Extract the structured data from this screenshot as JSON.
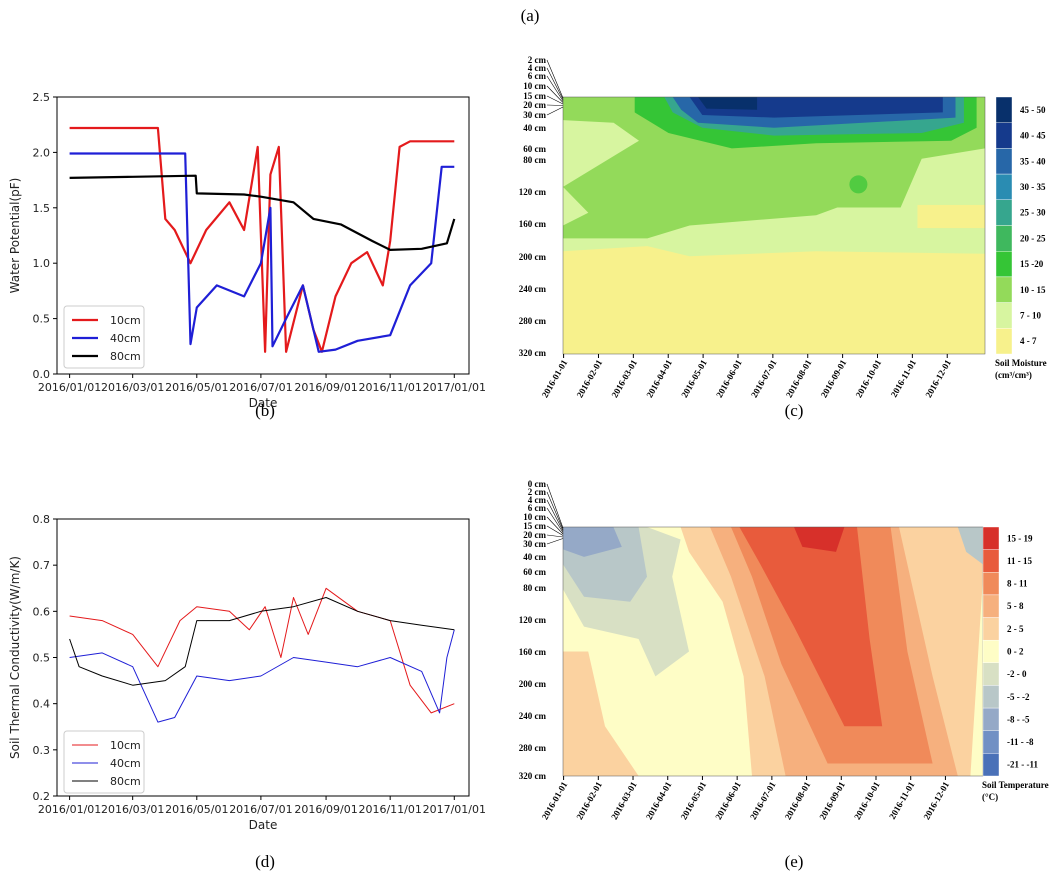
{
  "captions": {
    "a": "(a)",
    "b": "(b)",
    "c": "(c)",
    "d": "(d)",
    "e": "(e)"
  },
  "chart_data": [
    {
      "id": "b",
      "type": "line",
      "xlabel": "Date",
      "ylabel": "Water Potential(pF)",
      "ylim": [
        0.0,
        2.5
      ],
      "yticks": [
        "0.0",
        "0.5",
        "1.0",
        "1.5",
        "2.0",
        "2.5"
      ],
      "xticks": [
        "2016/01/01",
        "2016/03/01",
        "2016/05/01",
        "2016/07/01",
        "2016/09/01",
        "2016/11/01",
        "2017/01/01"
      ],
      "legend": "lower-left",
      "series": [
        {
          "name": "10cm",
          "color": "#e41a1c",
          "x": [
            "2016/01/01",
            "2016/03/25",
            "2016/04/01",
            "2016/04/10",
            "2016/04/25",
            "2016/05/10",
            "2016/06/01",
            "2016/06/15",
            "2016/06/28",
            "2016/07/05",
            "2016/07/10",
            "2016/07/18",
            "2016/07/25",
            "2016/08/10",
            "2016/08/20",
            "2016/08/28",
            "2016/09/10",
            "2016/09/25",
            "2016/10/10",
            "2016/10/25",
            "2016/11/01",
            "2016/11/10",
            "2016/11/20",
            "2017/01/01"
          ],
          "values": [
            2.22,
            2.22,
            1.4,
            1.3,
            1.0,
            1.3,
            1.55,
            1.3,
            2.05,
            0.2,
            1.8,
            2.05,
            0.2,
            0.8,
            0.4,
            0.2,
            0.7,
            1.0,
            1.1,
            0.8,
            1.2,
            2.05,
            2.1,
            2.1
          ]
        },
        {
          "name": "40cm",
          "color": "#1f1fd6",
          "x": [
            "2016/01/01",
            "2016/04/20",
            "2016/04/25",
            "2016/05/01",
            "2016/05/20",
            "2016/06/15",
            "2016/07/01",
            "2016/07/10",
            "2016/07/12",
            "2016/07/25",
            "2016/08/10",
            "2016/08/25",
            "2016/09/10",
            "2016/10/01",
            "2016/11/01",
            "2016/11/20",
            "2016/12/10",
            "2016/12/20",
            "2017/01/01"
          ],
          "values": [
            1.99,
            1.99,
            0.27,
            0.6,
            0.8,
            0.7,
            1.0,
            1.5,
            0.25,
            0.5,
            0.8,
            0.2,
            0.22,
            0.3,
            0.35,
            0.8,
            1.0,
            1.87,
            1.87
          ]
        },
        {
          "name": "80cm",
          "color": "#000000",
          "x": [
            "2016/01/01",
            "2016/03/01",
            "2016/04/30",
            "2016/05/01",
            "2016/06/15",
            "2016/07/01",
            "2016/08/01",
            "2016/08/20",
            "2016/09/15",
            "2016/10/15",
            "2016/11/01",
            "2016/12/01",
            "2016/12/25",
            "2017/01/01"
          ],
          "values": [
            1.77,
            1.78,
            1.79,
            1.63,
            1.62,
            1.6,
            1.55,
            1.4,
            1.35,
            1.2,
            1.12,
            1.13,
            1.18,
            1.4
          ]
        }
      ]
    },
    {
      "id": "d",
      "type": "line",
      "xlabel": "Date",
      "ylabel": "Soil Thermal Conductivity(W/m/K)",
      "ylim": [
        0.2,
        0.8
      ],
      "yticks": [
        "0.2",
        "0.3",
        "0.4",
        "0.5",
        "0.6",
        "0.7",
        "0.8"
      ],
      "xticks": [
        "2016/01/01",
        "2016/03/01",
        "2016/05/01",
        "2016/07/01",
        "2016/09/01",
        "2016/11/01",
        "2017/01/01"
      ],
      "legend": "lower-left",
      "series": [
        {
          "name": "10cm",
          "color": "#e41a1c",
          "x": [
            "2016/01/01",
            "2016/02/01",
            "2016/03/01",
            "2016/03/25",
            "2016/04/15",
            "2016/05/01",
            "2016/06/01",
            "2016/06/20",
            "2016/07/05",
            "2016/07/20",
            "2016/08/01",
            "2016/08/15",
            "2016/09/01",
            "2016/10/01",
            "2016/11/01",
            "2016/11/20",
            "2016/12/10",
            "2017/01/01"
          ],
          "values": [
            0.59,
            0.58,
            0.55,
            0.48,
            0.58,
            0.61,
            0.6,
            0.56,
            0.61,
            0.5,
            0.63,
            0.55,
            0.65,
            0.6,
            0.58,
            0.44,
            0.38,
            0.4
          ]
        },
        {
          "name": "40cm",
          "color": "#1f1fd6",
          "x": [
            "2016/01/01",
            "2016/02/01",
            "2016/03/01",
            "2016/03/25",
            "2016/04/10",
            "2016/05/01",
            "2016/06/01",
            "2016/07/01",
            "2016/08/01",
            "2016/09/01",
            "2016/10/01",
            "2016/11/01",
            "2016/12/01",
            "2016/12/18",
            "2016/12/25",
            "2017/01/01"
          ],
          "values": [
            0.5,
            0.51,
            0.48,
            0.36,
            0.37,
            0.46,
            0.45,
            0.46,
            0.5,
            0.49,
            0.48,
            0.5,
            0.47,
            0.38,
            0.5,
            0.56
          ]
        },
        {
          "name": "80cm",
          "color": "#000000",
          "x": [
            "2016/01/01",
            "2016/01/10",
            "2016/02/01",
            "2016/03/01",
            "2016/04/01",
            "2016/04/20",
            "2016/05/01",
            "2016/06/01",
            "2016/07/01",
            "2016/08/01",
            "2016/09/01",
            "2016/10/01",
            "2016/11/01",
            "2016/12/01",
            "2017/01/01"
          ],
          "values": [
            0.54,
            0.48,
            0.46,
            0.44,
            0.45,
            0.48,
            0.58,
            0.58,
            0.6,
            0.61,
            0.63,
            0.6,
            0.58,
            0.57,
            0.56
          ]
        }
      ]
    },
    {
      "id": "c",
      "type": "heatmap",
      "colorbar_title": "Soil Moisture (cm³/cm³)",
      "depth_labels": [
        "2 cm",
        "4 cm",
        "6 cm",
        "10 cm",
        "15 cm",
        "20 cm",
        "30 cm",
        "40 cm",
        "60 cm",
        "80 cm",
        "120 cm",
        "160 cm",
        "200 cm",
        "240 cm",
        "280 cm",
        "320 cm"
      ],
      "xticks": [
        "2016-01-01",
        "2016-02-01",
        "2016-03-01",
        "2016-04-01",
        "2016-05-01",
        "2016-06-01",
        "2016-07-01",
        "2016-08-01",
        "2016-09-01",
        "2016-10-01",
        "2016-11-01",
        "2016-12-01"
      ],
      "legend_classes": [
        {
          "label": "45 - 50",
          "color": "#08306b"
        },
        {
          "label": "40 - 45",
          "color": "#153a8c"
        },
        {
          "label": "35 - 40",
          "color": "#2767a8"
        },
        {
          "label": "30 - 35",
          "color": "#2a8cb2"
        },
        {
          "label": "25 - 30",
          "color": "#36a68e"
        },
        {
          "label": "20 - 25",
          "color": "#3fb85e"
        },
        {
          "label": "15 -20",
          "color": "#35c536"
        },
        {
          "label": "10 - 15",
          "color": "#93da5a"
        },
        {
          "label": "7 - 10",
          "color": "#d7f5a0"
        },
        {
          "label": "4 - 7",
          "color": "#f7f18c"
        }
      ]
    },
    {
      "id": "e",
      "type": "heatmap",
      "colorbar_title": "Soil Temperature (°C)",
      "depth_labels": [
        "0 cm",
        "2 cm",
        "4 cm",
        "6 cm",
        "10 cm",
        "15 cm",
        "20 cm",
        "30 cm",
        "40 cm",
        "60 cm",
        "80 cm",
        "120 cm",
        "160 cm",
        "200 cm",
        "240 cm",
        "280 cm",
        "320 cm"
      ],
      "xticks": [
        "2016-01-01",
        "2016-02-01",
        "2016-03-01",
        "2016-04-01",
        "2016-05-01",
        "2016-06-01",
        "2016-07-01",
        "2016-08-01",
        "2016-09-01",
        "2016-10-01",
        "2016-11-01",
        "2016-12-01"
      ],
      "legend_classes": [
        {
          "label": "15 - 19",
          "color": "#d7302a"
        },
        {
          "label": "11 - 15",
          "color": "#e85b3c"
        },
        {
          "label": "8 - 11",
          "color": "#f08a5a"
        },
        {
          "label": "5 - 8",
          "color": "#f6b07e"
        },
        {
          "label": "2 - 5",
          "color": "#fbd2a0"
        },
        {
          "label": "0 - 2",
          "color": "#fefdc6"
        },
        {
          "label": "-2 - 0",
          "color": "#d8e0c4"
        },
        {
          "label": "-5 - -2",
          "color": "#b8c7c8"
        },
        {
          "label": "-8 - -5",
          "color": "#95a9c7"
        },
        {
          "label": "-11 - -8",
          "color": "#7190c4"
        },
        {
          "label": "-21 - -11",
          "color": "#4a71b8"
        }
      ]
    }
  ]
}
